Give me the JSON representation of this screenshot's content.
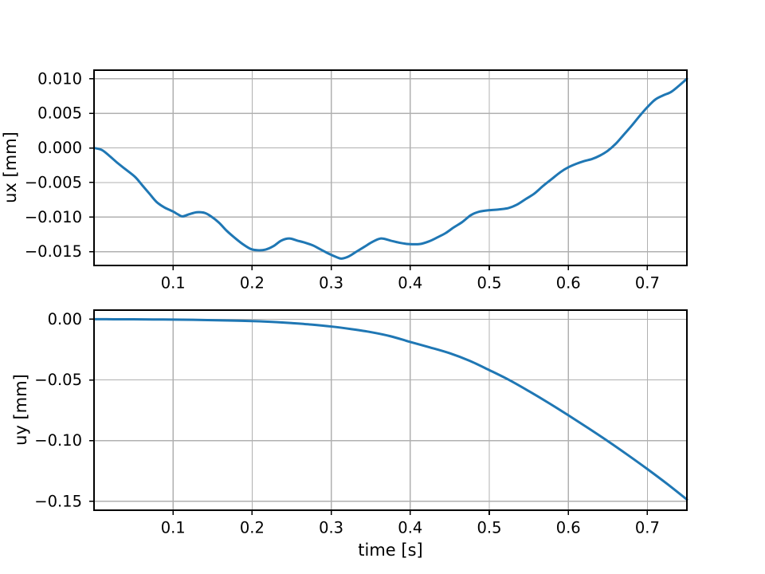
{
  "figure": {
    "background": "#ffffff",
    "line_color": "#1f77b4",
    "grid_color": "#b0b0b0",
    "spine_color": "#000000",
    "text_color": "#000000"
  },
  "chart_data": [
    {
      "type": "line",
      "title": "",
      "xlabel": "",
      "ylabel": "ux [mm]",
      "xlim": [
        0,
        0.75
      ],
      "ylim": [
        -0.017,
        0.01125
      ],
      "grid": true,
      "legend_position": "none",
      "xticks": [
        {
          "v": 0.1,
          "label": "0.1"
        },
        {
          "v": 0.2,
          "label": "0.2"
        },
        {
          "v": 0.3,
          "label": "0.3"
        },
        {
          "v": 0.4,
          "label": "0.4"
        },
        {
          "v": 0.5,
          "label": "0.5"
        },
        {
          "v": 0.6,
          "label": "0.6"
        },
        {
          "v": 0.7,
          "label": "0.7"
        }
      ],
      "yticks": [
        {
          "v": 0.01,
          "label": "0.010"
        },
        {
          "v": 0.005,
          "label": "0.005"
        },
        {
          "v": 0.0,
          "label": "0.000"
        },
        {
          "v": -0.005,
          "label": "−0.005"
        },
        {
          "v": -0.01,
          "label": "−0.010"
        },
        {
          "v": -0.015,
          "label": "−0.015"
        }
      ],
      "series": [
        {
          "name": "ux",
          "color": "#1f77b4",
          "x": [
            0.0,
            0.01,
            0.02,
            0.03,
            0.04,
            0.052,
            0.061,
            0.07,
            0.079,
            0.089,
            0.1,
            0.106,
            0.112,
            0.12,
            0.13,
            0.14,
            0.148,
            0.158,
            0.168,
            0.178,
            0.188,
            0.198,
            0.207,
            0.217,
            0.227,
            0.237,
            0.247,
            0.257,
            0.267,
            0.277,
            0.287,
            0.297,
            0.307,
            0.313,
            0.322,
            0.332,
            0.342,
            0.352,
            0.363,
            0.375,
            0.386,
            0.398,
            0.412,
            0.424,
            0.435,
            0.445,
            0.455,
            0.466,
            0.477,
            0.488,
            0.5,
            0.512,
            0.524,
            0.535,
            0.546,
            0.557,
            0.568,
            0.579,
            0.59,
            0.6,
            0.61,
            0.62,
            0.63,
            0.64,
            0.65,
            0.66,
            0.67,
            0.68,
            0.69,
            0.7,
            0.71,
            0.72,
            0.73,
            0.74,
            0.75
          ],
          "y": [
            0.0,
            -0.0003,
            -0.0012,
            -0.0022,
            -0.0031,
            -0.0042,
            -0.0054,
            -0.0066,
            -0.0078,
            -0.0086,
            -0.0092,
            -0.0096,
            -0.0099,
            -0.0096,
            -0.0093,
            -0.0094,
            -0.0099,
            -0.0108,
            -0.012,
            -0.013,
            -0.0139,
            -0.0146,
            -0.0148,
            -0.0147,
            -0.0142,
            -0.0134,
            -0.0131,
            -0.0134,
            -0.0137,
            -0.0141,
            -0.0147,
            -0.0153,
            -0.0158,
            -0.016,
            -0.0157,
            -0.015,
            -0.0143,
            -0.0136,
            -0.0131,
            -0.0134,
            -0.0137,
            -0.0139,
            -0.0139,
            -0.0135,
            -0.0129,
            -0.0123,
            -0.0115,
            -0.0107,
            -0.0097,
            -0.0092,
            -0.009,
            -0.0089,
            -0.0087,
            -0.0082,
            -0.0074,
            -0.0066,
            -0.0055,
            -0.0045,
            -0.0035,
            -0.0028,
            -0.0023,
            -0.0019,
            -0.0016,
            -0.0011,
            -0.0004,
            0.0006,
            0.0019,
            0.0032,
            0.0046,
            0.0059,
            0.007,
            0.0076,
            0.0081,
            0.009,
            0.01
          ]
        }
      ]
    },
    {
      "type": "line",
      "title": "",
      "xlabel": "time [s]",
      "ylabel": "uy [mm]",
      "xlim": [
        0,
        0.75
      ],
      "ylim": [
        -0.1573,
        0.0075
      ],
      "grid": true,
      "legend_position": "none",
      "xticks": [
        {
          "v": 0.1,
          "label": "0.1"
        },
        {
          "v": 0.2,
          "label": "0.2"
        },
        {
          "v": 0.3,
          "label": "0.3"
        },
        {
          "v": 0.4,
          "label": "0.4"
        },
        {
          "v": 0.5,
          "label": "0.5"
        },
        {
          "v": 0.6,
          "label": "0.6"
        },
        {
          "v": 0.7,
          "label": "0.7"
        }
      ],
      "yticks": [
        {
          "v": 0.0,
          "label": "0.00"
        },
        {
          "v": -0.05,
          "label": "−0.05"
        },
        {
          "v": -0.1,
          "label": "−0.10"
        },
        {
          "v": -0.15,
          "label": "−0.15"
        }
      ],
      "series": [
        {
          "name": "uy",
          "color": "#1f77b4",
          "x": [
            0,
            0.025,
            0.05,
            0.075,
            0.1,
            0.125,
            0.15,
            0.175,
            0.2,
            0.225,
            0.25,
            0.275,
            0.3,
            0.325,
            0.35,
            0.375,
            0.4,
            0.425,
            0.45,
            0.475,
            0.5,
            0.525,
            0.55,
            0.575,
            0.6,
            0.625,
            0.65,
            0.675,
            0.7,
            0.725,
            0.75
          ],
          "y": [
            0,
            -2e-05,
            -8e-05,
            -0.0002,
            -0.0003,
            -0.0005,
            -0.0008,
            -0.0011,
            -0.0015,
            -0.0022,
            -0.0032,
            -0.0044,
            -0.006,
            -0.0081,
            -0.0106,
            -0.014,
            -0.0187,
            -0.0232,
            -0.028,
            -0.0342,
            -0.0419,
            -0.05,
            -0.0592,
            -0.0689,
            -0.0791,
            -0.0896,
            -0.1004,
            -0.1117,
            -0.1234,
            -0.1356,
            -0.1485
          ]
        }
      ]
    }
  ]
}
